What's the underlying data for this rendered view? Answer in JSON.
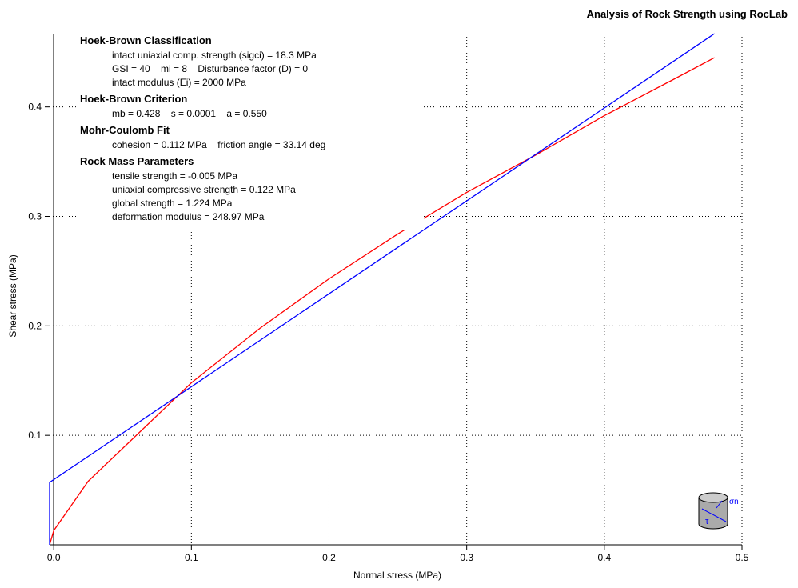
{
  "chart_data": {
    "type": "line",
    "title": "Analysis of Rock Strength using RocLab",
    "x_label": "Normal stress (MPa)",
    "y_label": "Shear stress (MPa)",
    "xlim": [
      -0.003,
      0.5
    ],
    "ylim": [
      0,
      0.467
    ],
    "xticks": [
      {
        "value": 0,
        "label": "0.0"
      },
      0.1,
      0.2,
      0.3,
      0.4,
      0.5
    ],
    "yticks": [
      0.1,
      0.2,
      0.3,
      0.4
    ],
    "grid": true,
    "series": [
      {
        "color": "#ff0000",
        "x": [
          -0.003,
          0,
          0.025,
          0.05,
          0.1,
          0.15,
          0.2,
          0.25,
          0.3,
          0.35,
          0.4,
          0.45,
          0.48
        ],
        "values": [
          0,
          0.013,
          0.058,
          0.088,
          0.148,
          0.198,
          0.243,
          0.284,
          0.322,
          0.356,
          0.392,
          0.425,
          0.445
        ]
      },
      {
        "color": "#0000ff",
        "x": [
          -0.003,
          -0.003,
          0.48
        ],
        "values": [
          0,
          0.057,
          0.467
        ]
      }
    ],
    "annotations": [
      {
        "heading": "Hoek-Brown Classification",
        "lines": [
          "intact uniaxial comp. strength (sigci) = 18.3 MPa",
          "GSI = 40    mi = 8    Disturbance factor (D) = 0",
          "intact modulus (Ei) = 2000 MPa"
        ]
      },
      {
        "heading": "Hoek-Brown Criterion",
        "lines": [
          "mb = 0.428    s = 0.0001    a = 0.550"
        ]
      },
      {
        "heading": "Mohr-Coulomb Fit",
        "lines": [
          "cohesion = 0.112 MPa    friction angle = 33.14 deg"
        ]
      },
      {
        "heading": "Rock Mass Parameters",
        "lines": [
          "tensile strength = -0.005 MPa",
          "uniaxial compressive strength = 0.122 MPa",
          "global strength = 1.224 MPa",
          "deformation modulus = 248.97 MPa"
        ]
      }
    ],
    "icon_labels": [
      "σn",
      "τ"
    ]
  }
}
